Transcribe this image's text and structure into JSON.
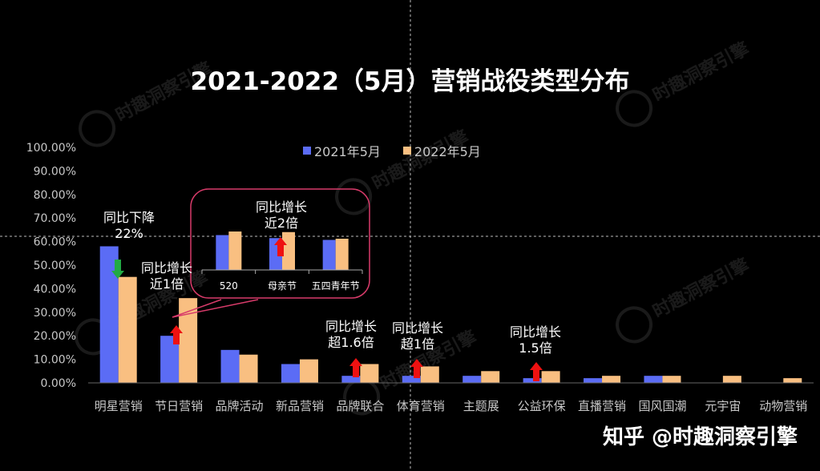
{
  "title": "2021-2022（5月）营销战役类型分布",
  "watermark_text": "时趣洞察引擎",
  "footer": "知乎 @时趣洞察引擎",
  "colors": {
    "s2021": "#5b6cf5",
    "s2022": "#f9bf81",
    "up": "#ee1111",
    "down": "#22aa44",
    "inset_border": "#d83b6a",
    "axis_text": "#c8c8c8"
  },
  "chart_data": [
    {
      "type": "bar",
      "categories": [
        "明星营销",
        "节日营销",
        "品牌活动",
        "新品营销",
        "品牌联合",
        "体育营销",
        "主题展",
        "公益环保",
        "直播营销",
        "国风国潮",
        "元宇宙",
        "动物营销"
      ],
      "series": [
        {
          "name": "2021年5月",
          "values": [
            58,
            20,
            14,
            8,
            3,
            3,
            3,
            2,
            2,
            3,
            0,
            0
          ]
        },
        {
          "name": "2022年5月",
          "values": [
            45,
            36,
            12,
            10,
            8,
            7,
            5,
            5,
            3,
            3,
            3,
            2
          ]
        }
      ],
      "ylim": [
        0,
        100
      ],
      "yticks": [
        "0.00%",
        "10.00%",
        "20.00%",
        "30.00%",
        "40.00%",
        "50.00%",
        "60.00%",
        "70.00%",
        "80.00%",
        "90.00%",
        "100.00%"
      ],
      "legend": "top"
    },
    {
      "type": "bar",
      "categories": [
        "520",
        "母亲节",
        "五四青年节"
      ],
      "series": [
        {
          "name": "2021年5月",
          "values": [
            58,
            53,
            50
          ]
        },
        {
          "name": "2022年5月",
          "values": [
            64,
            63,
            52
          ]
        }
      ]
    }
  ],
  "annotations": [
    {
      "id": "a0",
      "text1": "同比下降",
      "text2": "22%",
      "arrow": "down"
    },
    {
      "id": "a1",
      "text1": "同比增长",
      "text2": "近1倍",
      "arrow": "up"
    },
    {
      "id": "a2",
      "text1": "同比增长",
      "text2": "近2倍",
      "arrow": "up"
    },
    {
      "id": "a3",
      "text1": "同比增长",
      "text2": "超1.6倍",
      "arrow": "up"
    },
    {
      "id": "a4",
      "text1": "同比增长",
      "text2": "超1倍",
      "arrow": "up"
    },
    {
      "id": "a5",
      "text1": "同比增长",
      "text2": "1.5倍",
      "arrow": "up"
    }
  ]
}
